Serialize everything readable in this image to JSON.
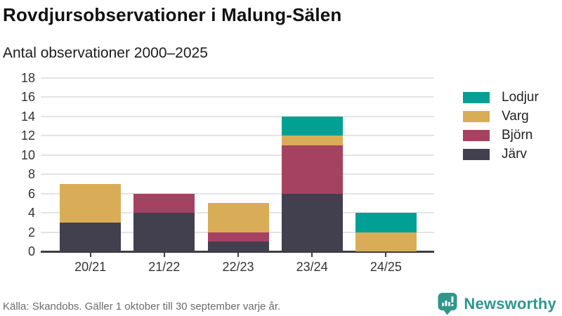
{
  "header": {
    "title": "Rovdjursobservationer i Malung-Sälen",
    "subtitle": "Antal observationer 2000–2025"
  },
  "footer": {
    "source": "Källa: Skandobs. Gäller 1 oktober till 30 september varje år.",
    "brand": "Newsworthy"
  },
  "colors": {
    "lodjur": "#00a095",
    "varg": "#d9ad58",
    "bjorn": "#a64261",
    "jarv": "#423f4e",
    "grid": "#e4e4e4",
    "axis": "#3f3d44",
    "brand_teal": "#2f968e"
  },
  "chart_data": {
    "type": "bar",
    "stacked": true,
    "title": "Rovdjursobservationer i Malung-Sälen",
    "subtitle": "Antal observationer 2000–2025",
    "categories": [
      "20/21",
      "21/22",
      "22/23",
      "23/24",
      "24/25"
    ],
    "series": [
      {
        "name": "Lodjur",
        "color": "#00a095",
        "values": [
          0,
          0,
          0,
          2,
          2
        ]
      },
      {
        "name": "Varg",
        "color": "#d9ad58",
        "values": [
          4,
          0,
          3,
          1,
          2
        ]
      },
      {
        "name": "Björn",
        "color": "#a64261",
        "values": [
          0,
          2,
          1,
          5,
          0
        ]
      },
      {
        "name": "Järv",
        "color": "#423f4e",
        "values": [
          3,
          4,
          1,
          6,
          0
        ]
      }
    ],
    "stack_order_bottom_to_top": [
      "Järv",
      "Björn",
      "Varg",
      "Lodjur"
    ],
    "totals": [
      7,
      6,
      5,
      14,
      4
    ],
    "xlabel": "",
    "ylabel": "",
    "ylim": [
      0,
      18
    ],
    "yticks": [
      0,
      2,
      4,
      6,
      8,
      10,
      12,
      14,
      16,
      18
    ],
    "grid": true,
    "legend_position": "right"
  }
}
